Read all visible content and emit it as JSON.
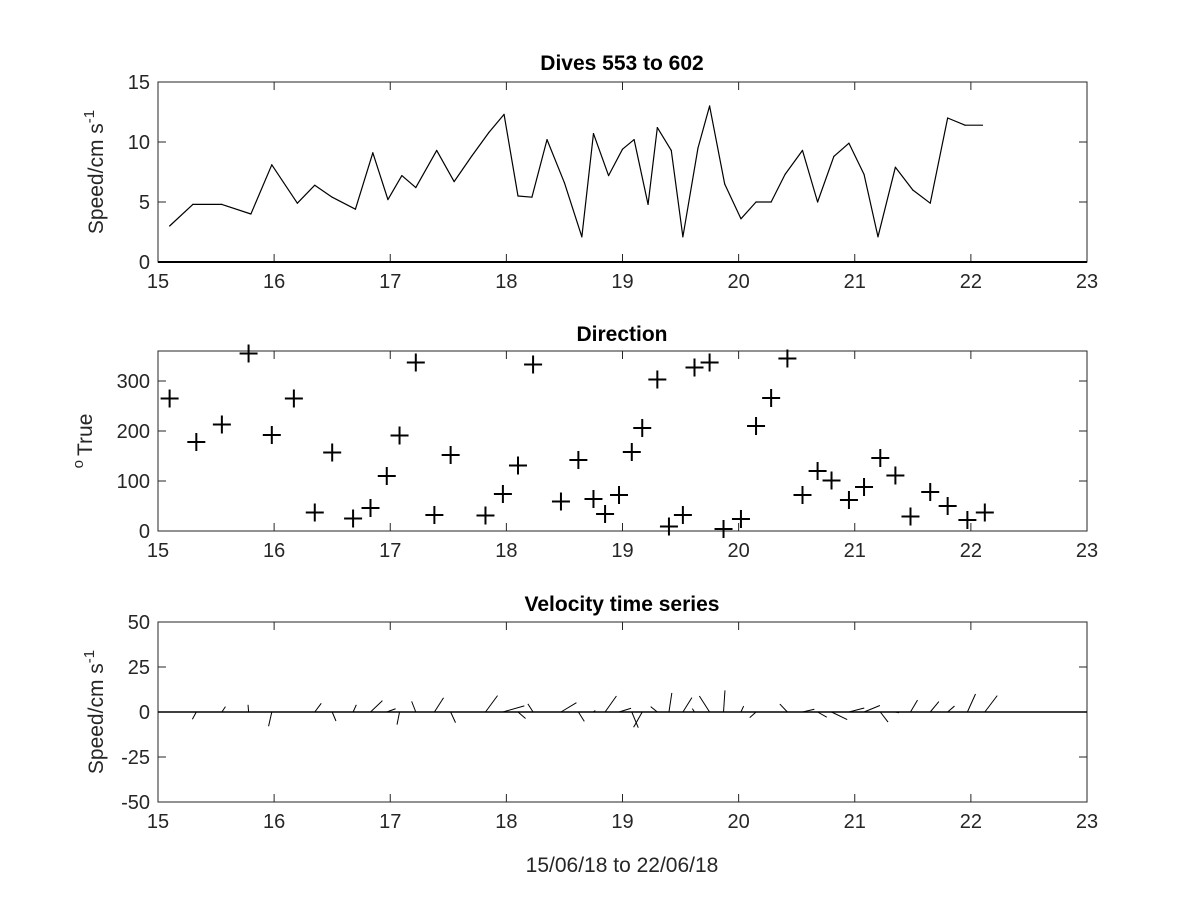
{
  "chart_data": [
    {
      "type": "line",
      "title": "Dives 553 to 602",
      "xlabel": "",
      "ylabel": "Speed/cm s",
      "ylabel_superscript": "-1",
      "xlim": [
        15,
        23
      ],
      "ylim": [
        0,
        15
      ],
      "x_ticks": [
        "15",
        "16",
        "17",
        "18",
        "19",
        "20",
        "21",
        "22",
        "23"
      ],
      "y_ticks": [
        "0",
        "5",
        "10",
        "15"
      ],
      "color": "#000000",
      "x": [
        15.1,
        15.3,
        15.55,
        15.8,
        15.98,
        16.2,
        16.35,
        16.5,
        16.7,
        16.85,
        16.98,
        17.1,
        17.22,
        17.4,
        17.55,
        17.7,
        17.85,
        17.98,
        18.1,
        18.22,
        18.35,
        18.5,
        18.65,
        18.75,
        18.88,
        19.0,
        19.1,
        19.22,
        19.3,
        19.42,
        19.52,
        19.65,
        19.75,
        19.88,
        20.02,
        20.15,
        20.28,
        20.4,
        20.55,
        20.68,
        20.82,
        20.95,
        21.08,
        21.2,
        21.35,
        21.5,
        21.65,
        21.8,
        21.95,
        22.1
      ],
      "y": [
        3.0,
        4.8,
        4.8,
        4.0,
        8.1,
        4.9,
        6.4,
        5.4,
        4.4,
        9.1,
        5.2,
        7.2,
        6.2,
        9.3,
        6.7,
        8.8,
        10.8,
        12.3,
        5.5,
        5.4,
        10.2,
        6.6,
        2.1,
        10.7,
        7.2,
        9.4,
        10.2,
        4.8,
        11.2,
        9.3,
        2.1,
        9.5,
        13.0,
        6.5,
        3.6,
        5.0,
        5.0,
        7.3,
        9.3,
        5.0,
        8.8,
        9.9,
        7.3,
        2.1,
        7.9,
        6.0,
        4.9,
        12.0,
        11.4,
        11.4
      ]
    },
    {
      "type": "scatter",
      "title": "Direction",
      "xlabel": "",
      "ylabel": "True",
      "ylabel_superscript": "o",
      "xlim": [
        15,
        23
      ],
      "ylim": [
        0,
        360
      ],
      "x_ticks": [
        "15",
        "16",
        "17",
        "18",
        "19",
        "20",
        "21",
        "22",
        "23"
      ],
      "y_ticks": [
        "0",
        "100",
        "200",
        "300"
      ],
      "marker": "+",
      "color": "#000000",
      "x": [
        15.1,
        15.33,
        15.55,
        15.78,
        15.98,
        16.17,
        16.35,
        16.5,
        16.68,
        16.83,
        16.97,
        17.08,
        17.22,
        17.38,
        17.52,
        17.82,
        17.97,
        18.1,
        18.23,
        18.47,
        18.62,
        18.75,
        18.85,
        18.97,
        19.08,
        19.17,
        19.3,
        19.4,
        19.52,
        19.62,
        19.75,
        19.87,
        20.02,
        20.15,
        20.28,
        20.42,
        20.55,
        20.68,
        20.8,
        20.95,
        21.08,
        21.22,
        21.35,
        21.48,
        21.65,
        21.8,
        21.97,
        22.12
      ],
      "y": [
        265,
        178,
        213,
        355,
        192,
        265,
        37,
        157,
        25,
        46,
        110,
        191,
        337,
        32,
        152,
        31,
        74,
        131,
        333,
        59,
        142,
        64,
        34,
        72,
        158,
        206,
        303,
        9,
        32,
        327,
        337,
        4,
        24,
        210,
        266,
        345,
        72,
        120,
        101,
        62,
        88,
        146,
        111,
        29,
        78,
        50,
        22,
        37
      ]
    },
    {
      "type": "quiver",
      "title": "Velocity time series",
      "xlabel": "15/06/18 to 22/06/18",
      "ylabel": "Speed/cm s",
      "ylabel_superscript": "-1",
      "xlim": [
        15,
        23
      ],
      "ylim": [
        -50,
        50
      ],
      "x_ticks": [
        "15",
        "16",
        "17",
        "18",
        "19",
        "20",
        "21",
        "22",
        "23"
      ],
      "y_ticks": [
        "-50",
        "-25",
        "0",
        "25",
        "50"
      ],
      "baseline": 0,
      "color": "#000000",
      "sticks": [
        {
          "x": 15.33,
          "u": -2.2,
          "v": -4.0
        },
        {
          "x": 15.55,
          "u": 2.0,
          "v": 3.0
        },
        {
          "x": 15.78,
          "u": -0.3,
          "v": 4.0
        },
        {
          "x": 15.98,
          "u": -1.8,
          "v": -7.9
        },
        {
          "x": 16.35,
          "u": 3.6,
          "v": 4.8
        },
        {
          "x": 16.5,
          "u": 2.1,
          "v": -5.0
        },
        {
          "x": 16.68,
          "u": 1.8,
          "v": 4.0
        },
        {
          "x": 16.83,
          "u": 6.6,
          "v": 6.3
        },
        {
          "x": 16.97,
          "u": 4.9,
          "v": 1.8
        },
        {
          "x": 17.08,
          "u": -1.4,
          "v": -7.0
        },
        {
          "x": 17.22,
          "u": -2.3,
          "v": 5.9
        },
        {
          "x": 17.38,
          "u": 5.1,
          "v": 7.9
        },
        {
          "x": 17.52,
          "u": 2.7,
          "v": -5.9
        },
        {
          "x": 17.82,
          "u": 6.7,
          "v": 9.1
        },
        {
          "x": 17.97,
          "u": 11.9,
          "v": 3.4
        },
        {
          "x": 18.1,
          "u": 4.2,
          "v": -3.6
        },
        {
          "x": 18.23,
          "u": -2.9,
          "v": 4.5
        },
        {
          "x": 18.47,
          "u": 8.6,
          "v": 5.2
        },
        {
          "x": 18.62,
          "u": 3.3,
          "v": -5.2
        },
        {
          "x": 18.75,
          "u": 1.0,
          "v": 0.8
        },
        {
          "x": 18.85,
          "u": 6.3,
          "v": 8.9
        },
        {
          "x": 18.97,
          "u": 6.7,
          "v": 2.1
        },
        {
          "x": 19.08,
          "u": 3.6,
          "v": -8.7
        },
        {
          "x": 19.17,
          "u": -4.8,
          "v": -8.5
        },
        {
          "x": 19.3,
          "u": -3.7,
          "v": 3.0
        },
        {
          "x": 19.4,
          "u": 1.6,
          "v": 10.6
        },
        {
          "x": 19.52,
          "u": 5.0,
          "v": 8.0
        },
        {
          "x": 19.62,
          "u": -1.2,
          "v": 1.9
        },
        {
          "x": 19.75,
          "u": -5.7,
          "v": 8.9
        },
        {
          "x": 19.87,
          "u": 0.8,
          "v": 12.0
        },
        {
          "x": 20.02,
          "u": 1.5,
          "v": 3.3
        },
        {
          "x": 20.15,
          "u": -3.5,
          "v": -3.1
        },
        {
          "x": 20.28,
          "u": -0.3,
          "v": 0.1
        },
        {
          "x": 20.42,
          "u": -4.2,
          "v": 4.4
        },
        {
          "x": 20.55,
          "u": 6.6,
          "v": 1.5
        },
        {
          "x": 20.68,
          "u": 5.1,
          "v": -2.9
        },
        {
          "x": 20.8,
          "u": 8.7,
          "v": -4.2
        },
        {
          "x": 20.95,
          "u": 8.5,
          "v": 2.2
        },
        {
          "x": 21.08,
          "u": 8.8,
          "v": 3.6
        },
        {
          "x": 21.22,
          "u": 4.3,
          "v": -5.6
        },
        {
          "x": 21.35,
          "u": 2.0,
          "v": -0.4
        },
        {
          "x": 21.48,
          "u": 3.9,
          "v": 6.6
        },
        {
          "x": 21.65,
          "u": 4.8,
          "v": 5.8
        },
        {
          "x": 21.8,
          "u": 3.8,
          "v": 3.3
        },
        {
          "x": 21.97,
          "u": 4.5,
          "v": 10.0
        },
        {
          "x": 22.12,
          "u": 6.9,
          "v": 9.1
        }
      ]
    }
  ]
}
